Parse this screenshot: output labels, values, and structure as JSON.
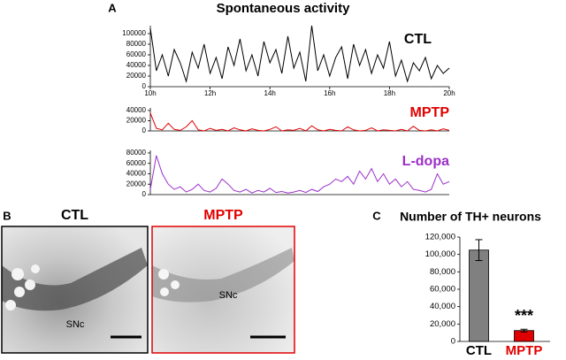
{
  "chart_data": [
    {
      "type": "line",
      "panel": "A",
      "title": "Spontaneous activity",
      "x": [
        10,
        10.2,
        10.4,
        10.6,
        10.8,
        11,
        11.2,
        11.4,
        11.6,
        11.8,
        12,
        12.2,
        12.4,
        12.6,
        12.8,
        13,
        13.2,
        13.4,
        13.6,
        13.8,
        14,
        14.2,
        14.4,
        14.6,
        14.8,
        15,
        15.2,
        15.4,
        15.6,
        15.8,
        16,
        16.2,
        16.4,
        16.6,
        16.8,
        17,
        17.2,
        17.4,
        17.6,
        17.8,
        18,
        18.2,
        18.4,
        18.6,
        18.8,
        19,
        19.2,
        19.4,
        19.6,
        19.8,
        20
      ],
      "xlim": [
        10,
        20
      ],
      "xticks": [
        {
          "value": 10,
          "label": "10h"
        },
        {
          "value": 12,
          "label": "12h"
        },
        {
          "value": 14,
          "label": "14h"
        },
        {
          "value": 16,
          "label": "16h"
        },
        {
          "value": 18,
          "label": "18h"
        },
        {
          "value": 20,
          "label": "20h"
        }
      ],
      "series": [
        {
          "name": "CTL",
          "color": "#000000",
          "values": [
            110000,
            30000,
            60000,
            20000,
            70000,
            45000,
            10000,
            65000,
            35000,
            80000,
            25000,
            55000,
            15000,
            75000,
            40000,
            90000,
            30000,
            60000,
            20000,
            85000,
            45000,
            70000,
            25000,
            95000,
            35000,
            65000,
            10000,
            115000,
            30000,
            60000,
            20000,
            55000,
            75000,
            15000,
            80000,
            40000,
            70000,
            25000,
            60000,
            35000,
            85000,
            20000,
            50000,
            10000,
            45000,
            30000,
            55000,
            15000,
            40000,
            25000,
            35000
          ]
        }
      ],
      "ylim": [
        0,
        115000
      ],
      "yticks": [
        0,
        20000,
        40000,
        60000,
        80000,
        100000
      ]
    },
    {
      "type": "line",
      "series": [
        {
          "name": "MPTP",
          "color": "#e00000",
          "values": [
            35000,
            5000,
            2000,
            15000,
            3000,
            1000,
            8000,
            20000,
            2000,
            0,
            5000,
            1000,
            3000,
            0,
            6000,
            2000,
            0,
            4000,
            1000,
            0,
            3000,
            8000,
            0,
            2000,
            1000,
            5000,
            0,
            10000,
            2000,
            0,
            3000,
            1000,
            0,
            8000,
            2000,
            0,
            1000,
            6000,
            0,
            2000,
            1000,
            0,
            3000,
            0,
            9000,
            1000,
            0,
            2000,
            0,
            4000,
            1000
          ]
        }
      ],
      "ylim": [
        0,
        45000
      ],
      "yticks": [
        0,
        20000,
        40000
      ]
    },
    {
      "type": "line",
      "series": [
        {
          "name": "L-dopa",
          "color": "#9b30c8",
          "values": [
            10000,
            75000,
            40000,
            20000,
            10000,
            15000,
            5000,
            10000,
            20000,
            8000,
            5000,
            12000,
            30000,
            20000,
            8000,
            5000,
            10000,
            3000,
            8000,
            5000,
            12000,
            4000,
            6000,
            3000,
            5000,
            8000,
            4000,
            10000,
            6000,
            15000,
            20000,
            30000,
            25000,
            35000,
            20000,
            45000,
            30000,
            50000,
            25000,
            40000,
            20000,
            30000,
            15000,
            25000,
            10000,
            8000,
            5000,
            10000,
            40000,
            20000,
            25000
          ]
        }
      ],
      "ylim": [
        0,
        85000
      ],
      "yticks": [
        0,
        20000,
        40000,
        60000,
        80000
      ]
    },
    {
      "type": "bar",
      "panel": "C",
      "title": "Number of TH+ neurons",
      "categories": [
        "CTL",
        "MPTP"
      ],
      "category_colors": [
        "#000000",
        "#e00000"
      ],
      "values": [
        105000,
        12500
      ],
      "errors": [
        12000,
        1500
      ],
      "colors": [
        "#808080",
        "#e00000"
      ],
      "annotation": "***",
      "ylim": [
        0,
        120000
      ],
      "yticks": [
        0,
        {
          "value": 20000,
          "label": "20,000"
        },
        {
          "value": 40000,
          "label": "40,000"
        },
        {
          "value": 60000,
          "label": "60,000"
        },
        {
          "value": 80000,
          "label": "80,000"
        },
        {
          "value": 100000,
          "label": "100,000"
        },
        {
          "value": 120000,
          "label": "120,000"
        }
      ]
    }
  ],
  "figure_b": {
    "panel": "B",
    "images": [
      {
        "title": "CTL",
        "color": "#000000",
        "region": "SNc"
      },
      {
        "title": "MPTP",
        "color": "#e00000",
        "region": "SNc"
      }
    ]
  }
}
